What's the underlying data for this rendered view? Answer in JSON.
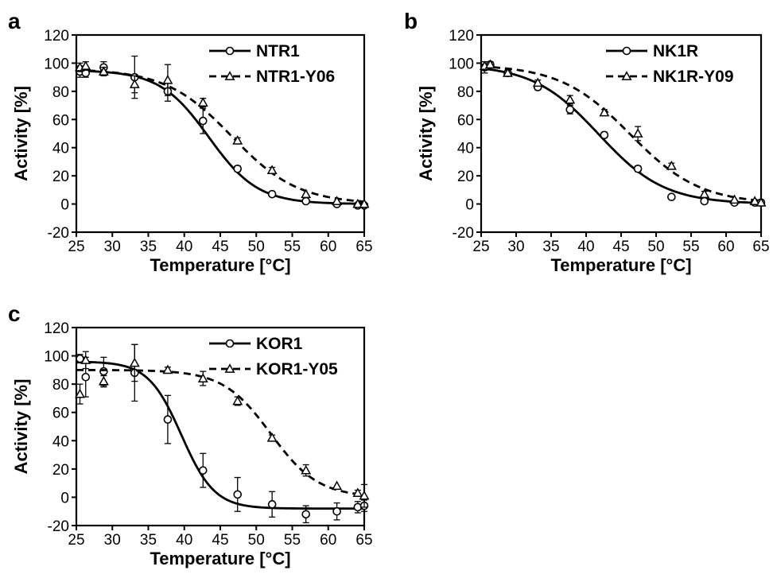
{
  "chart_data": [
    {
      "type": "scatter",
      "panel_label": "a",
      "xlabel": "Temperature [°C]",
      "ylabel": "Activity [%]",
      "xlim": [
        25,
        65
      ],
      "ylim": [
        -20,
        120
      ],
      "xticks": [
        25,
        30,
        35,
        40,
        45,
        50,
        55,
        60,
        65
      ],
      "yticks": [
        -20,
        0,
        20,
        40,
        60,
        80,
        100,
        120
      ],
      "legend_position": "top-right",
      "series": [
        {
          "name": "NTR1",
          "marker": "circle",
          "line": "solid",
          "x": [
            25.5,
            26.3,
            28.8,
            33.1,
            37.7,
            42.6,
            47.4,
            52.2,
            56.9,
            61.2,
            64.1,
            65.0
          ],
          "y": [
            94,
            93,
            97,
            90,
            80,
            59,
            25,
            7,
            2,
            0,
            -1,
            -1
          ],
          "err": [
            4,
            3,
            4,
            15,
            7,
            9,
            2,
            1,
            1,
            1,
            1,
            1
          ],
          "fit": {
            "top": 95,
            "bottom": 0,
            "tm": 43.4,
            "slope": 3.4
          }
        },
        {
          "name": "NTR1-Y06",
          "marker": "triangle",
          "line": "dashed",
          "x": [
            25.5,
            26.3,
            28.8,
            33.1,
            37.7,
            42.6,
            47.4,
            52.2,
            56.9,
            61.2,
            64.1,
            65.0
          ],
          "y": [
            97,
            98,
            94,
            85,
            88,
            72,
            45,
            24,
            7,
            2,
            0,
            0
          ],
          "err": [
            3,
            3,
            3,
            6,
            11,
            3,
            2,
            2,
            1,
            1,
            1,
            1
          ],
          "fit": {
            "top": 96,
            "bottom": 0,
            "tm": 46.6,
            "slope": 4.6
          }
        }
      ]
    },
    {
      "type": "scatter",
      "panel_label": "b",
      "xlabel": "Temperature [°C]",
      "ylabel": "Activity [%]",
      "xlim": [
        25,
        65
      ],
      "ylim": [
        -20,
        120
      ],
      "xticks": [
        25,
        30,
        35,
        40,
        45,
        50,
        55,
        60,
        65
      ],
      "yticks": [
        -20,
        0,
        20,
        40,
        60,
        80,
        100,
        120
      ],
      "legend_position": "top-right",
      "series": [
        {
          "name": "NK1R",
          "marker": "circle",
          "line": "solid",
          "x": [
            25.5,
            26.3,
            28.8,
            33.1,
            37.7,
            42.6,
            47.4,
            52.2,
            56.9,
            61.2,
            64.1,
            65.0
          ],
          "y": [
            97,
            99,
            93,
            83,
            67,
            49,
            25,
            5,
            2,
            1,
            1,
            1
          ],
          "err": [
            4,
            2,
            2,
            2,
            3,
            2,
            2,
            1,
            1,
            1,
            1,
            1
          ],
          "fit": {
            "top": 99,
            "bottom": 0,
            "tm": 41.8,
            "slope": 4.7
          }
        },
        {
          "name": "NK1R-Y09",
          "marker": "triangle",
          "line": "dashed",
          "x": [
            25.5,
            26.3,
            28.8,
            33.1,
            37.7,
            42.6,
            47.4,
            52.2,
            56.9,
            61.2,
            64.1,
            65.0
          ],
          "y": [
            98,
            99,
            93,
            86,
            74,
            65,
            50,
            27,
            7,
            3,
            2,
            1
          ],
          "err": [
            3,
            2,
            2,
            2,
            3,
            2,
            5,
            2,
            2,
            1,
            1,
            1
          ],
          "fit": {
            "top": 99,
            "bottom": 0,
            "tm": 46.3,
            "slope": 5.0
          }
        }
      ]
    },
    {
      "type": "scatter",
      "panel_label": "c",
      "xlabel": "Temperature [°C]",
      "ylabel": "Activity [%]",
      "xlim": [
        25,
        65
      ],
      "ylim": [
        -20,
        120
      ],
      "xticks": [
        25,
        30,
        35,
        40,
        45,
        50,
        55,
        60,
        65
      ],
      "yticks": [
        -20,
        0,
        20,
        40,
        60,
        80,
        100,
        120
      ],
      "legend_position": "top-right",
      "series": [
        {
          "name": "KOR1",
          "marker": "circle",
          "line": "solid",
          "x": [
            25.5,
            26.3,
            28.8,
            33.1,
            37.7,
            42.6,
            47.4,
            52.2,
            56.9,
            61.2,
            64.1,
            65.0
          ],
          "y": [
            98,
            85,
            89,
            88,
            55,
            19,
            2,
            -5,
            -12,
            -10,
            -7,
            -6
          ],
          "err": [
            3,
            14,
            10,
            20,
            17,
            12,
            12,
            9,
            6,
            6,
            4,
            4
          ],
          "fit": {
            "top": 96,
            "bottom": -8,
            "tm": 39.6,
            "slope": 2.3
          }
        },
        {
          "name": "KOR1-Y05",
          "marker": "triangle",
          "line": "dashed",
          "x": [
            25.5,
            26.3,
            28.8,
            33.1,
            37.7,
            42.6,
            47.4,
            52.2,
            56.9,
            61.2,
            64.1,
            65.0
          ],
          "y": [
            73,
            97,
            82,
            95,
            90,
            84,
            68,
            42,
            19,
            8,
            3,
            1
          ],
          "err": [
            7,
            6,
            4,
            13,
            2,
            5,
            3,
            2,
            4,
            1,
            2,
            8
          ],
          "fit": {
            "top": 90,
            "bottom": 0,
            "tm": 52.0,
            "slope": 3.3
          }
        }
      ]
    }
  ]
}
